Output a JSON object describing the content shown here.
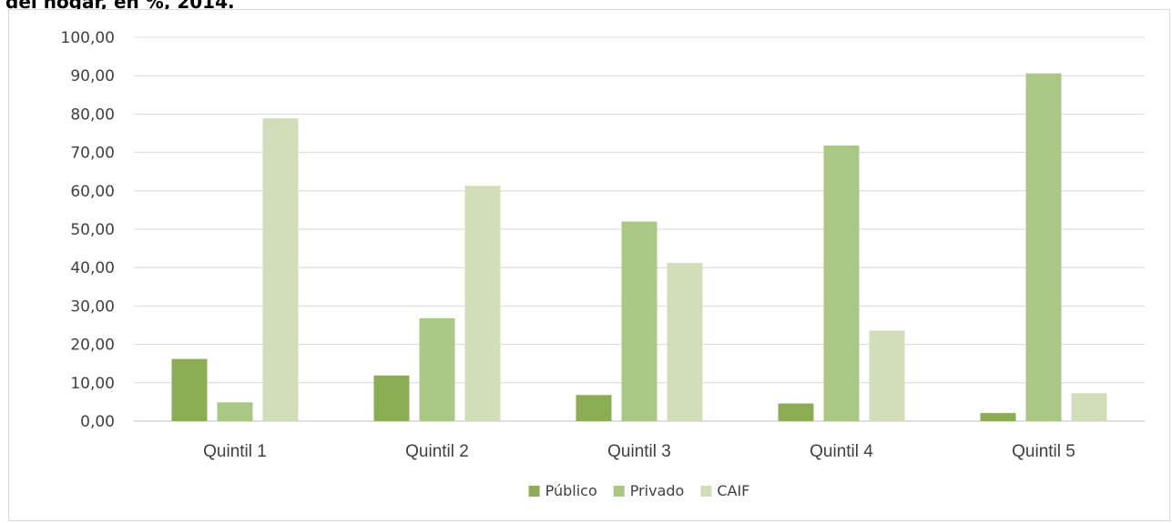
{
  "title_fragment": "del hogar, en %, 2014.",
  "chart_data": {
    "type": "bar",
    "categories": [
      "Quintil 1",
      "Quintil 2",
      "Quintil 3",
      "Quintil 4",
      "Quintil 5"
    ],
    "series": [
      {
        "name": "Público",
        "color": "#8cad54",
        "values": [
          16.2,
          11.9,
          6.8,
          4.6,
          2.1
        ]
      },
      {
        "name": "Privado",
        "color": "#abc785",
        "values": [
          4.9,
          26.8,
          52.0,
          71.8,
          90.6
        ]
      },
      {
        "name": "CAIF",
        "color": "#d2deb9",
        "values": [
          78.9,
          61.3,
          41.2,
          23.6,
          7.3
        ]
      }
    ],
    "y_ticks": [
      "0,00",
      "10,00",
      "20,00",
      "30,00",
      "40,00",
      "50,00",
      "60,00",
      "70,00",
      "80,00",
      "90,00",
      "100,00"
    ],
    "ylim": [
      0,
      100
    ],
    "grid": true,
    "legend_position": "bottom"
  }
}
